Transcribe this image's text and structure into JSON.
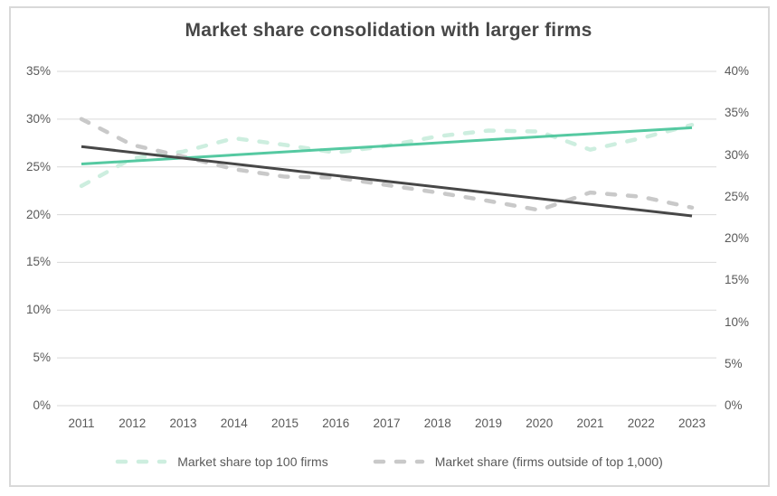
{
  "chart_data": {
    "type": "line",
    "title": "Market share consolidation with larger firms",
    "xlabel": "",
    "ylabel": "",
    "x": [
      2011,
      2012,
      2013,
      2014,
      2015,
      2016,
      2017,
      2018,
      2019,
      2020,
      2021,
      2022,
      2023
    ],
    "series": [
      {
        "name": "Market share top 100 firms",
        "axis": "left",
        "line_style": "dashed",
        "color": "#CDEEDF",
        "values": [
          23.0,
          25.9,
          26.6,
          28.0,
          27.3,
          26.5,
          27.2,
          28.2,
          28.8,
          28.7,
          26.8,
          28.0,
          29.4
        ]
      },
      {
        "name": "Market share (firms outside of top 1,000)",
        "axis": "right",
        "line_style": "dashed",
        "color": "#C9C9C9",
        "values": [
          34.3,
          31.2,
          29.8,
          28.3,
          27.4,
          27.3,
          26.4,
          25.5,
          24.5,
          23.4,
          25.5,
          25.0,
          23.7
        ]
      }
    ],
    "trendlines": [
      {
        "for_series": "Market share top 100 firms",
        "axis": "left",
        "line_style": "solid",
        "color": "#55C9A1",
        "start_value": 25.3,
        "end_value": 29.1
      },
      {
        "for_series": "Market share (firms outside of top 1,000)",
        "axis": "right",
        "line_style": "solid",
        "color": "#474747",
        "start_value": 31.0,
        "end_value": 22.7
      }
    ],
    "axes": {
      "left": {
        "min": 0,
        "max": 35,
        "tick_values": [
          0,
          5,
          10,
          15,
          20,
          25,
          30,
          35
        ],
        "tick_labels": [
          "0%",
          "5%",
          "10%",
          "15%",
          "20%",
          "25%",
          "30%",
          "35%"
        ]
      },
      "right": {
        "min": 0,
        "max": 40,
        "tick_values": [
          0,
          5,
          10,
          15,
          20,
          25,
          30,
          35,
          40
        ],
        "tick_labels": [
          "0%",
          "5%",
          "10%",
          "15%",
          "20%",
          "25%",
          "30%",
          "35%",
          "40%"
        ]
      }
    },
    "grid": "horizontal",
    "grid_color": "#D9D9D9",
    "text_color": "#595959",
    "title_color": "#474747",
    "legend_position": "bottom"
  }
}
